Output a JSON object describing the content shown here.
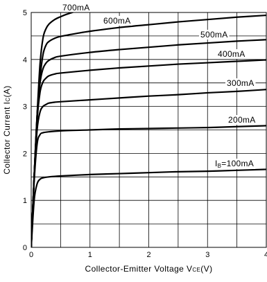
{
  "chart_data": {
    "type": "line",
    "title": "",
    "xlabel": {
      "text": "Collector-Emitter Voltage V",
      "subscript": "CE",
      "suffix": "(V)"
    },
    "ylabel": {
      "text": "Collector Current I",
      "subscript": "C",
      "suffix": "(A)"
    },
    "xlim": [
      0,
      4
    ],
    "ylim": [
      0,
      5
    ],
    "xticks": [
      0,
      1,
      2,
      3,
      4
    ],
    "yticks": [
      0,
      1,
      2,
      3,
      4,
      5
    ],
    "x_minor_grid": [
      0.5,
      1.5,
      2.5,
      3.5
    ],
    "y_minor_grid": [
      0.5,
      1.5,
      2.5,
      3.5,
      4.5
    ],
    "grid": true,
    "series": [
      {
        "name": "700mA",
        "label_prefix": "",
        "label_sub": "",
        "label_main": "700mA",
        "points": [
          [
            0,
            0
          ],
          [
            0.05,
            1.5
          ],
          [
            0.1,
            2.8
          ],
          [
            0.15,
            3.9
          ],
          [
            0.2,
            4.45
          ],
          [
            0.25,
            4.65
          ],
          [
            0.3,
            4.75
          ],
          [
            0.4,
            4.85
          ],
          [
            0.5,
            4.91
          ],
          [
            0.6,
            4.96
          ],
          [
            0.75,
            5.02
          ]
        ]
      },
      {
        "name": "600mA",
        "label_prefix": "",
        "label_sub": "",
        "label_main": "600mA",
        "points": [
          [
            0,
            0
          ],
          [
            0.05,
            1.5
          ],
          [
            0.1,
            2.8
          ],
          [
            0.15,
            3.6
          ],
          [
            0.2,
            4.1
          ],
          [
            0.25,
            4.3
          ],
          [
            0.3,
            4.38
          ],
          [
            0.4,
            4.45
          ],
          [
            0.5,
            4.49
          ],
          [
            0.8,
            4.56
          ],
          [
            1.0,
            4.6
          ],
          [
            1.5,
            4.68
          ],
          [
            2.0,
            4.74
          ],
          [
            2.5,
            4.8
          ],
          [
            3.0,
            4.85
          ],
          [
            3.5,
            4.9
          ],
          [
            4.0,
            4.94
          ]
        ]
      },
      {
        "name": "500mA",
        "label_prefix": "",
        "label_sub": "",
        "label_main": "500mA",
        "points": [
          [
            0,
            0
          ],
          [
            0.05,
            1.5
          ],
          [
            0.1,
            2.8
          ],
          [
            0.15,
            3.5
          ],
          [
            0.2,
            3.8
          ],
          [
            0.25,
            3.92
          ],
          [
            0.3,
            3.98
          ],
          [
            0.4,
            4.04
          ],
          [
            0.5,
            4.07
          ],
          [
            1.0,
            4.15
          ],
          [
            1.5,
            4.21
          ],
          [
            2.0,
            4.26
          ],
          [
            2.5,
            4.31
          ],
          [
            3.0,
            4.35
          ],
          [
            3.5,
            4.39
          ],
          [
            4.0,
            4.42
          ]
        ]
      },
      {
        "name": "400mA",
        "label_prefix": "",
        "label_sub": "",
        "label_main": "400mA",
        "points": [
          [
            0,
            0
          ],
          [
            0.05,
            1.5
          ],
          [
            0.1,
            2.7
          ],
          [
            0.15,
            3.3
          ],
          [
            0.2,
            3.52
          ],
          [
            0.25,
            3.6
          ],
          [
            0.3,
            3.65
          ],
          [
            0.4,
            3.69
          ],
          [
            0.5,
            3.71
          ],
          [
            1.0,
            3.77
          ],
          [
            1.5,
            3.82
          ],
          [
            2.0,
            3.86
          ],
          [
            2.5,
            3.9
          ],
          [
            3.0,
            3.93
          ],
          [
            3.5,
            3.96
          ],
          [
            4.0,
            3.99
          ]
        ]
      },
      {
        "name": "300mA",
        "label_prefix": "",
        "label_sub": "",
        "label_main": "300mA",
        "points": [
          [
            0,
            0
          ],
          [
            0.05,
            1.5
          ],
          [
            0.1,
            2.5
          ],
          [
            0.15,
            2.88
          ],
          [
            0.2,
            3.0
          ],
          [
            0.25,
            3.04
          ],
          [
            0.3,
            3.07
          ],
          [
            0.4,
            3.09
          ],
          [
            0.5,
            3.1
          ],
          [
            1.0,
            3.14
          ],
          [
            1.5,
            3.18
          ],
          [
            2.0,
            3.22
          ],
          [
            2.5,
            3.25
          ],
          [
            3.0,
            3.29
          ],
          [
            3.5,
            3.32
          ],
          [
            4.0,
            3.36
          ]
        ]
      },
      {
        "name": "200mA",
        "label_prefix": "",
        "label_sub": "",
        "label_main": "200mA",
        "points": [
          [
            0,
            0
          ],
          [
            0.05,
            1.4
          ],
          [
            0.1,
            2.2
          ],
          [
            0.15,
            2.4
          ],
          [
            0.2,
            2.44
          ],
          [
            0.3,
            2.46
          ],
          [
            0.5,
            2.48
          ],
          [
            1.0,
            2.5
          ],
          [
            1.5,
            2.52
          ],
          [
            2.0,
            2.53
          ],
          [
            2.5,
            2.54
          ],
          [
            3.0,
            2.55
          ],
          [
            3.5,
            2.57
          ],
          [
            4.0,
            2.59
          ]
        ]
      },
      {
        "name": "IB=100mA",
        "label_prefix": "I",
        "label_sub": "B",
        "label_main": "=100mA",
        "points": [
          [
            0,
            0
          ],
          [
            0.05,
            1.0
          ],
          [
            0.1,
            1.35
          ],
          [
            0.15,
            1.45
          ],
          [
            0.2,
            1.48
          ],
          [
            0.3,
            1.5
          ],
          [
            0.5,
            1.52
          ],
          [
            1.0,
            1.55
          ],
          [
            1.5,
            1.57
          ],
          [
            2.0,
            1.59
          ],
          [
            2.5,
            1.61
          ],
          [
            3.0,
            1.62
          ],
          [
            3.5,
            1.64
          ],
          [
            4.0,
            1.66
          ]
        ]
      }
    ]
  }
}
